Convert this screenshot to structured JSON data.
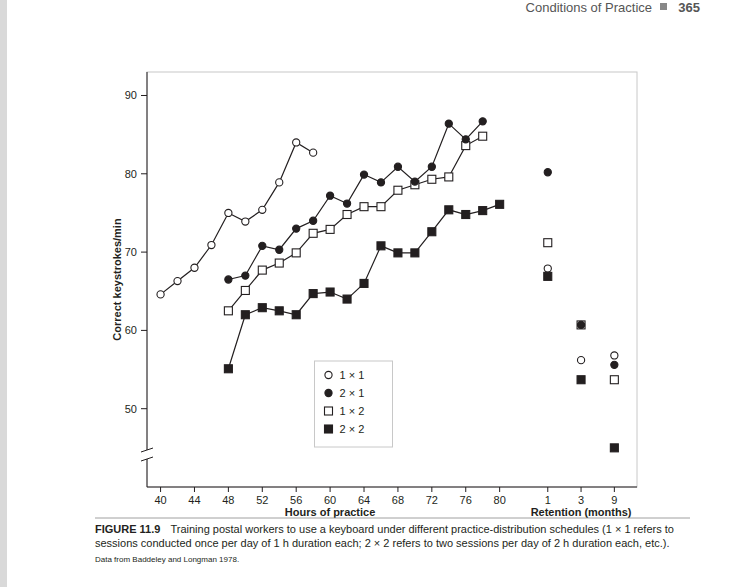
{
  "page": {
    "running_head": "Conditions of Practice",
    "page_number": "365",
    "figure_label": "FIGURE 11.9",
    "caption": "Training postal workers to use a keyboard under different practice-distribution schedules (1 × 1 refers to sessions conducted once per day of 1 h duration each; 2 × 2 refers to two sessions per day of 2 h duration each, etc.).",
    "source": "Data from Baddeley and Longman 1978."
  },
  "chart_data": [
    {
      "type": "line",
      "x_label": "Hours of practice",
      "y_label": "Correct keystrokes/min",
      "xlim": [
        38.4,
        82.4
      ],
      "xticks": [
        40,
        44,
        48,
        52,
        56,
        60,
        64,
        68,
        72,
        76,
        80
      ],
      "ylim": [
        40,
        93
      ],
      "yticks": [
        50,
        60,
        70,
        80,
        90
      ],
      "legend": "bottom",
      "series": [
        {
          "name": "1 × 1",
          "color": "#231f20",
          "marker": "circle-open",
          "x": [
            40,
            42,
            44,
            46,
            48,
            50,
            52,
            54,
            56,
            58
          ],
          "values": [
            64.6,
            66.3,
            68.0,
            70.9,
            75.0,
            73.9,
            75.4,
            78.9,
            84.0,
            82.7
          ]
        },
        {
          "name": "2 × 1",
          "color": "#231f20",
          "marker": "circle",
          "x": [
            48,
            50,
            52,
            54,
            56,
            58,
            60,
            62,
            64,
            66,
            68,
            70,
            72,
            74,
            76,
            78
          ],
          "values": [
            66.5,
            67.0,
            70.8,
            70.3,
            73.0,
            74.0,
            77.2,
            76.2,
            79.9,
            78.9,
            80.9,
            79.0,
            80.9,
            86.4,
            84.4,
            86.7
          ]
        },
        {
          "name": "1 × 2",
          "color": "#231f20",
          "marker": "square-open",
          "x": [
            48,
            50,
            52,
            54,
            56,
            58,
            60,
            62,
            64,
            66,
            68,
            70,
            72,
            74,
            76,
            78
          ],
          "values": [
            62.5,
            65.1,
            67.7,
            68.6,
            69.9,
            72.4,
            72.9,
            74.8,
            75.8,
            75.8,
            77.9,
            78.6,
            79.3,
            79.6,
            83.6,
            84.8
          ]
        },
        {
          "name": "2 × 2",
          "color": "#231f20",
          "marker": "square",
          "x": [
            48,
            50,
            52,
            54,
            56,
            58,
            60,
            62,
            64,
            66,
            68,
            70,
            72,
            74,
            76,
            78,
            80
          ],
          "values": [
            55.1,
            62.0,
            62.9,
            62.5,
            62.0,
            64.7,
            64.9,
            64.0,
            66.0,
            70.8,
            69.9,
            69.9,
            72.6,
            75.4,
            74.8,
            75.3,
            76.1
          ]
        }
      ]
    },
    {
      "type": "scatter",
      "x_label": "Retention (months)",
      "log": "x",
      "tick_labels": "x",
      "xlim": [
        0.4,
        19
      ],
      "xticks": [
        1,
        3,
        9
      ],
      "ylim": [
        40,
        93
      ],
      "series": [
        {
          "color": "#231f20",
          "marker": "circle-open",
          "x": [
            1,
            3,
            9
          ],
          "values": [
            67.9,
            56.2,
            56.8
          ]
        },
        {
          "color": "#231f20",
          "marker": "circle",
          "x": [
            1,
            3,
            9
          ],
          "values": [
            80.2,
            60.7,
            55.6
          ]
        },
        {
          "color": "#231f20",
          "marker": "square-open",
          "x": [
            1,
            3,
            9
          ],
          "values": [
            71.2,
            60.7,
            53.7
          ]
        },
        {
          "color": "#231f20",
          "marker": "square",
          "x": [
            1,
            3,
            9
          ],
          "values": [
            66.9,
            53.7,
            45.0
          ]
        }
      ]
    }
  ]
}
